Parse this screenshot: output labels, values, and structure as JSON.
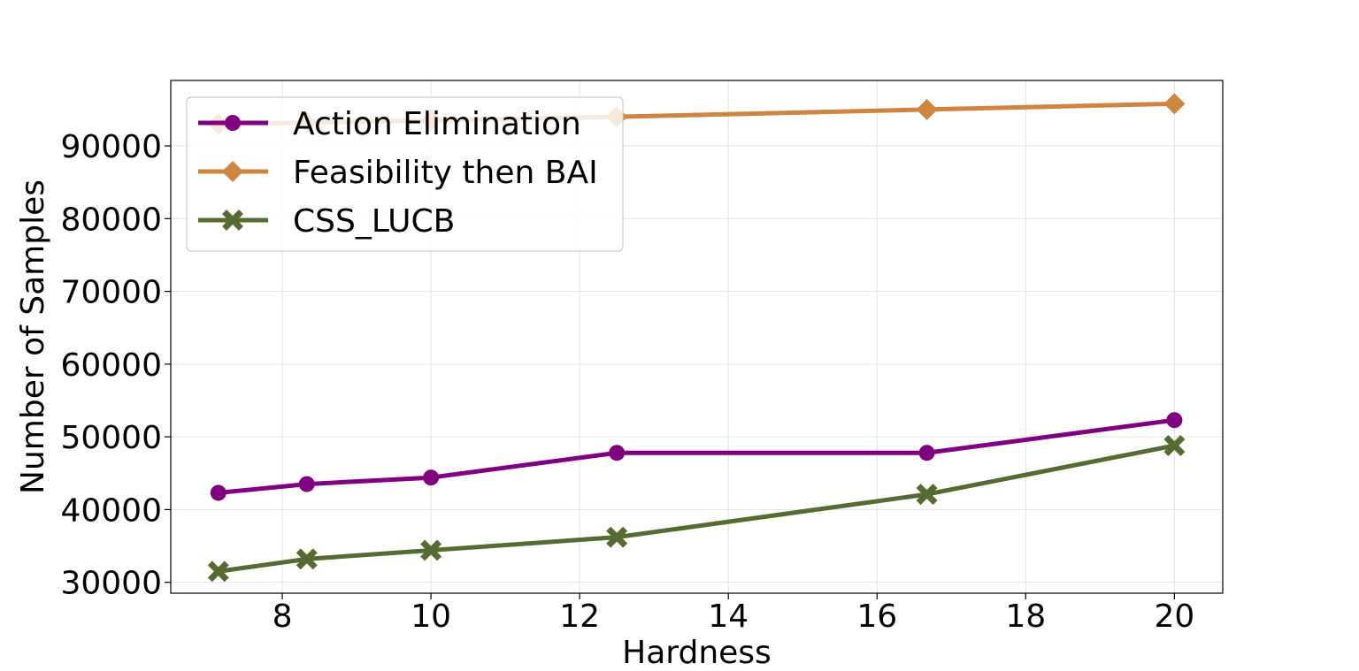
{
  "chart_data": {
    "type": "line",
    "title": "",
    "xlabel": "Hardness",
    "ylabel": "Number of Samples",
    "xlim": [
      6.5,
      20.65
    ],
    "ylim": [
      28500,
      99000
    ],
    "xticks": [
      8,
      10,
      12,
      14,
      16,
      18,
      20
    ],
    "xtick_labels": [
      "8",
      "10",
      "12",
      "14",
      "16",
      "18",
      "20"
    ],
    "yticks": [
      30000,
      40000,
      50000,
      60000,
      70000,
      80000,
      90000
    ],
    "ytick_labels": [
      "30000",
      "40000",
      "50000",
      "60000",
      "70000",
      "80000",
      "90000"
    ],
    "grid": true,
    "legend_position": "upper-left",
    "x": [
      7.14,
      8.33,
      10.0,
      12.5,
      16.67,
      20.0
    ],
    "series": [
      {
        "name": "Action Elimination",
        "color": "#800080",
        "marker": "circle",
        "values": [
          42300,
          43500,
          44400,
          47800,
          47800,
          52300
        ]
      },
      {
        "name": "Feasibility then BAI",
        "color": "#cd853f",
        "marker": "diamond",
        "values": [
          93000,
          93200,
          93500,
          94000,
          95000,
          95800
        ]
      },
      {
        "name": "CSS_LUCB",
        "color": "#556b2f",
        "marker": "x",
        "values": [
          31500,
          33200,
          34400,
          36200,
          42100,
          48800
        ]
      }
    ]
  }
}
